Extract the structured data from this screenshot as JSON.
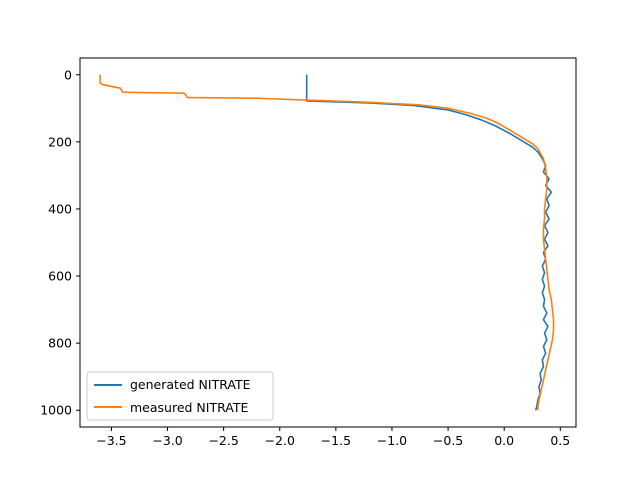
{
  "chart_data": {
    "type": "line",
    "title": "",
    "xlabel": "",
    "ylabel": "",
    "xlim": [
      -3.78,
      0.64
    ],
    "ylim": [
      1050,
      -50
    ],
    "y_inverted": true,
    "grid": false,
    "legend_placement": "lower left",
    "x_ticks": [
      -3.5,
      -3.0,
      -2.5,
      -2.0,
      -1.5,
      -1.0,
      -0.5,
      0.0,
      0.5
    ],
    "x_tick_labels": [
      "−3.5",
      "−3.0",
      "−2.5",
      "−2.0",
      "−1.5",
      "−1.0",
      "−0.5",
      "0.0",
      "0.5"
    ],
    "y_ticks": [
      0,
      200,
      400,
      600,
      800,
      1000
    ],
    "y_tick_labels": [
      "0",
      "200",
      "400",
      "600",
      "800",
      "1000"
    ],
    "series": [
      {
        "name": "generated NITRATE",
        "color": "#1f77b4",
        "points": [
          [
            -1.76,
            0
          ],
          [
            -1.76,
            78
          ],
          [
            -1.2,
            84
          ],
          [
            -0.8,
            92
          ],
          [
            -0.5,
            105
          ],
          [
            -0.35,
            118
          ],
          [
            -0.2,
            135
          ],
          [
            -0.08,
            152
          ],
          [
            0.05,
            175
          ],
          [
            0.15,
            195
          ],
          [
            0.25,
            215
          ],
          [
            0.3,
            230
          ],
          [
            0.34,
            250
          ],
          [
            0.37,
            270
          ],
          [
            0.35,
            290
          ],
          [
            0.4,
            310
          ],
          [
            0.37,
            330
          ],
          [
            0.42,
            350
          ],
          [
            0.38,
            370
          ],
          [
            0.4,
            390
          ],
          [
            0.37,
            410
          ],
          [
            0.4,
            430
          ],
          [
            0.36,
            450
          ],
          [
            0.39,
            470
          ],
          [
            0.36,
            490
          ],
          [
            0.39,
            510
          ],
          [
            0.35,
            530
          ],
          [
            0.37,
            550
          ],
          [
            0.34,
            570
          ],
          [
            0.36,
            590
          ],
          [
            0.34,
            610
          ],
          [
            0.36,
            630
          ],
          [
            0.34,
            650
          ],
          [
            0.36,
            670
          ],
          [
            0.35,
            690
          ],
          [
            0.38,
            710
          ],
          [
            0.35,
            730
          ],
          [
            0.39,
            750
          ],
          [
            0.36,
            770
          ],
          [
            0.38,
            790
          ],
          [
            0.35,
            810
          ],
          [
            0.37,
            830
          ],
          [
            0.34,
            850
          ],
          [
            0.35,
            870
          ],
          [
            0.32,
            890
          ],
          [
            0.33,
            910
          ],
          [
            0.31,
            930
          ],
          [
            0.32,
            950
          ],
          [
            0.3,
            970
          ],
          [
            0.29,
            990
          ],
          [
            0.28,
            1000
          ]
        ]
      },
      {
        "name": "measured NITRATE",
        "color": "#ff7f0e",
        "points": [
          [
            -3.6,
            0
          ],
          [
            -3.6,
            25
          ],
          [
            -3.57,
            30
          ],
          [
            -3.42,
            40
          ],
          [
            -3.4,
            52
          ],
          [
            -2.85,
            55
          ],
          [
            -2.82,
            68
          ],
          [
            -2.2,
            70
          ],
          [
            -1.8,
            75
          ],
          [
            -1.2,
            82
          ],
          [
            -0.75,
            90
          ],
          [
            -0.5,
            100
          ],
          [
            -0.3,
            115
          ],
          [
            -0.15,
            130
          ],
          [
            -0.05,
            145
          ],
          [
            0.05,
            165
          ],
          [
            0.15,
            185
          ],
          [
            0.25,
            205
          ],
          [
            0.3,
            220
          ],
          [
            0.35,
            250
          ],
          [
            0.37,
            280
          ],
          [
            0.38,
            310
          ],
          [
            0.38,
            340
          ],
          [
            0.37,
            370
          ],
          [
            0.36,
            400
          ],
          [
            0.36,
            430
          ],
          [
            0.35,
            460
          ],
          [
            0.35,
            490
          ],
          [
            0.36,
            520
          ],
          [
            0.37,
            550
          ],
          [
            0.38,
            580
          ],
          [
            0.39,
            610
          ],
          [
            0.4,
            640
          ],
          [
            0.42,
            670
          ],
          [
            0.43,
            700
          ],
          [
            0.44,
            730
          ],
          [
            0.44,
            760
          ],
          [
            0.43,
            790
          ],
          [
            0.41,
            820
          ],
          [
            0.39,
            850
          ],
          [
            0.37,
            880
          ],
          [
            0.35,
            910
          ],
          [
            0.33,
            940
          ],
          [
            0.31,
            970
          ],
          [
            0.3,
            990
          ],
          [
            0.3,
            1000
          ]
        ]
      }
    ]
  }
}
